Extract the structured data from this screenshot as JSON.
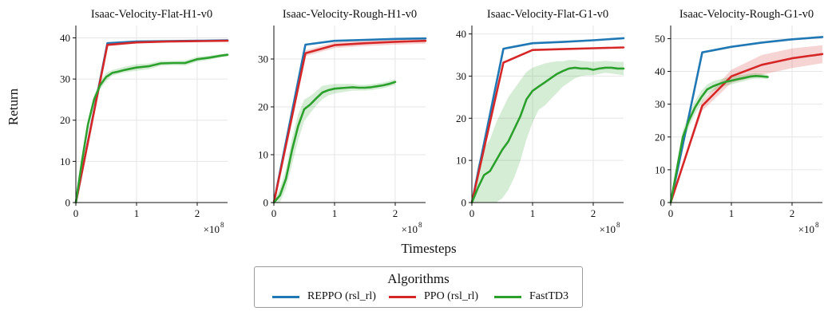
{
  "figure": {
    "ylabel": "Return",
    "xlabel": "Timesteps",
    "x_scale_label": "×10",
    "x_scale_exp": "8"
  },
  "legend": {
    "title": "Algorithms",
    "items": [
      {
        "name": "REPPO (rsl_rl)",
        "color": "#1f77b4"
      },
      {
        "name": "PPO (rsl_rl)",
        "color": "#d62728"
      },
      {
        "name": "FastTD3",
        "color": "#2ca02c"
      }
    ]
  },
  "chart_data": [
    {
      "type": "line",
      "title": "Isaac-Velocity-Flat-H1-v0",
      "xlim": [
        0,
        2.5
      ],
      "ylim": [
        0,
        43
      ],
      "xticks": [
        0,
        1,
        2
      ],
      "yticks": [
        0,
        10,
        20,
        30,
        40
      ],
      "grid": true,
      "series": [
        {
          "name": "REPPO (rsl_rl)",
          "color": "#1f77b4",
          "x": [
            0,
            0.52,
            1.0,
            1.5,
            2.0,
            2.5
          ],
          "y": [
            0,
            38.7,
            39.1,
            39.2,
            39.3,
            39.4
          ]
        },
        {
          "name": "PPO (rsl_rl)",
          "color": "#d62728",
          "x": [
            0,
            0.52,
            1.0,
            1.5,
            2.0,
            2.5
          ],
          "y": [
            0,
            38.3,
            38.9,
            39.1,
            39.2,
            39.3
          ]
        },
        {
          "name": "FastTD3",
          "color": "#2ca02c",
          "x": [
            0,
            0.1,
            0.2,
            0.3,
            0.4,
            0.5,
            0.6,
            0.7,
            0.8,
            0.9,
            1.0,
            1.2,
            1.4,
            1.6,
            1.8,
            2.0,
            2.2,
            2.4,
            2.5
          ],
          "y": [
            0,
            10,
            19,
            25,
            28.5,
            30.5,
            31.5,
            31.8,
            32.2,
            32.5,
            32.8,
            33.1,
            33.8,
            33.9,
            33.9,
            34.8,
            35.2,
            35.7,
            35.9
          ],
          "lower": [
            0,
            9,
            18,
            24,
            27.5,
            29.5,
            30.8,
            31.2,
            31.6,
            31.8,
            32.0,
            32.4,
            33.2,
            33.4,
            33.3,
            34.2,
            34.7,
            35.3,
            35.5
          ],
          "upper": [
            0,
            11,
            20,
            26,
            29.5,
            31.5,
            32.2,
            32.6,
            33.0,
            33.3,
            33.6,
            33.8,
            34.4,
            34.4,
            34.5,
            35.4,
            35.7,
            36.1,
            36.3
          ]
        }
      ]
    },
    {
      "type": "line",
      "title": "Isaac-Velocity-Rough-H1-v0",
      "xlim": [
        0,
        2.5
      ],
      "ylim": [
        0,
        37
      ],
      "xticks": [
        0,
        1,
        2
      ],
      "yticks": [
        0,
        10,
        20,
        30
      ],
      "grid": true,
      "series": [
        {
          "name": "REPPO (rsl_rl)",
          "color": "#1f77b4",
          "x": [
            0,
            0.52,
            1.0,
            1.5,
            2.0,
            2.5
          ],
          "y": [
            0,
            33.0,
            33.8,
            34.0,
            34.2,
            34.3
          ]
        },
        {
          "name": "PPO (rsl_rl)",
          "color": "#d62728",
          "x": [
            0,
            0.52,
            1.0,
            1.5,
            2.0,
            2.5
          ],
          "y": [
            0,
            31.2,
            32.9,
            33.3,
            33.6,
            33.8
          ],
          "lower": [
            0,
            30.6,
            32.3,
            32.7,
            33.0,
            33.2
          ],
          "upper": [
            0,
            31.8,
            33.5,
            33.9,
            34.2,
            34.4
          ]
        },
        {
          "name": "FastTD3",
          "color": "#2ca02c",
          "x": [
            0,
            0.1,
            0.2,
            0.3,
            0.4,
            0.5,
            0.6,
            0.7,
            0.8,
            0.9,
            1.0,
            1.1,
            1.2,
            1.3,
            1.4,
            1.5,
            1.6,
            1.7,
            1.8,
            1.9,
            2.0
          ],
          "y": [
            0,
            1.5,
            5,
            11,
            16,
            19.5,
            20.5,
            21.8,
            23,
            23.5,
            23.8,
            23.9,
            24.0,
            24.1,
            24.0,
            24.0,
            24.1,
            24.3,
            24.5,
            24.8,
            25.2
          ],
          "lower": [
            0,
            0,
            3,
            8,
            13,
            17,
            18.7,
            20.3,
            21.6,
            22.4,
            22.8,
            23.0,
            23.2,
            23.4,
            23.4,
            23.4,
            23.5,
            23.7,
            23.9,
            24.2,
            24.6
          ],
          "upper": [
            0,
            3,
            7,
            13.5,
            18.5,
            21.5,
            22.3,
            23.3,
            24.4,
            24.6,
            24.8,
            24.8,
            24.8,
            24.8,
            24.6,
            24.6,
            24.7,
            24.9,
            25.1,
            25.4,
            25.8
          ]
        }
      ]
    },
    {
      "type": "line",
      "title": "Isaac-Velocity-Flat-G1-v0",
      "xlim": [
        0,
        2.5
      ],
      "ylim": [
        0,
        42
      ],
      "xticks": [
        0,
        1,
        2
      ],
      "yticks": [
        0,
        10,
        20,
        30,
        40
      ],
      "grid": true,
      "series": [
        {
          "name": "REPPO (rsl_rl)",
          "color": "#1f77b4",
          "x": [
            0,
            0.52,
            1.0,
            1.5,
            2.0,
            2.5
          ],
          "y": [
            0,
            36.5,
            37.8,
            38.1,
            38.5,
            39.0
          ]
        },
        {
          "name": "PPO (rsl_rl)",
          "color": "#d62728",
          "x": [
            0,
            0.52,
            1.0,
            1.5,
            2.0,
            2.5
          ],
          "y": [
            0,
            33.2,
            36.2,
            36.4,
            36.6,
            36.8
          ]
        },
        {
          "name": "FastTD3",
          "color": "#2ca02c",
          "x": [
            0,
            0.1,
            0.2,
            0.3,
            0.4,
            0.5,
            0.6,
            0.7,
            0.8,
            0.9,
            1.0,
            1.1,
            1.2,
            1.3,
            1.4,
            1.5,
            1.6,
            1.7,
            1.8,
            1.9,
            2.0,
            2.1,
            2.2,
            2.3,
            2.4,
            2.5
          ],
          "y": [
            0,
            3.5,
            6.5,
            7.5,
            10,
            12.5,
            14.5,
            17.5,
            20.5,
            24.5,
            26.5,
            27.5,
            28.5,
            29.5,
            30.5,
            31.2,
            31.8,
            32.0,
            31.8,
            31.8,
            31.5,
            31.8,
            32.0,
            32.0,
            31.8,
            31.8
          ],
          "lower": [
            0,
            0,
            0,
            0,
            0,
            1,
            3,
            6,
            10,
            15,
            19,
            22,
            23,
            24.5,
            26,
            27.5,
            28.5,
            29.5,
            30,
            30.2,
            30.2,
            30.5,
            30.8,
            30.6,
            30.4,
            30.2
          ],
          "upper": [
            0,
            9,
            13,
            15,
            19,
            22,
            25,
            27,
            29,
            31,
            32,
            32.5,
            33,
            33.3,
            33.5,
            33.5,
            33.8,
            33.8,
            33.6,
            33.5,
            33.4,
            33.5,
            33.6,
            33.5,
            33.4,
            33.4
          ]
        }
      ]
    },
    {
      "type": "line",
      "title": "Isaac-Velocity-Rough-G1-v0",
      "xlim": [
        0,
        2.5
      ],
      "ylim": [
        0,
        54
      ],
      "xticks": [
        0,
        1,
        2
      ],
      "yticks": [
        0,
        10,
        20,
        30,
        40,
        50
      ],
      "grid": true,
      "series": [
        {
          "name": "REPPO (rsl_rl)",
          "color": "#1f77b4",
          "x": [
            0,
            0.52,
            1.0,
            1.5,
            2.0,
            2.5
          ],
          "y": [
            0,
            45.8,
            47.5,
            48.8,
            49.8,
            50.5
          ]
        },
        {
          "name": "PPO (rsl_rl)",
          "color": "#d62728",
          "x": [
            0,
            0.52,
            1.0,
            1.5,
            2.0,
            2.5
          ],
          "y": [
            0,
            29.5,
            38.5,
            42,
            44,
            45.3
          ],
          "lower": [
            0,
            28.0,
            36.5,
            39.0,
            41.0,
            42.5
          ],
          "upper": [
            0,
            31.0,
            40.5,
            45.0,
            47.0,
            48.0
          ]
        },
        {
          "name": "FastTD3",
          "color": "#2ca02c",
          "x": [
            0,
            0.1,
            0.2,
            0.3,
            0.4,
            0.5,
            0.6,
            0.7,
            0.8,
            0.9,
            1.0,
            1.1,
            1.2,
            1.3,
            1.4,
            1.5,
            1.6
          ],
          "y": [
            0,
            10,
            20,
            25,
            29,
            32,
            34.5,
            35.5,
            36.2,
            36.8,
            37.2,
            37.6,
            38.0,
            38.4,
            38.6,
            38.5,
            38.3
          ],
          "lower": [
            0,
            8,
            18,
            23,
            27,
            30,
            33,
            34,
            35,
            35.6,
            36.0,
            36.5,
            37.0,
            37.5,
            37.8,
            37.8,
            37.6
          ],
          "upper": [
            0,
            12,
            22,
            27,
            31,
            34,
            36,
            37,
            37.5,
            38,
            38.5,
            38.8,
            39.0,
            39.3,
            39.5,
            39.3,
            39.0
          ]
        }
      ]
    }
  ]
}
